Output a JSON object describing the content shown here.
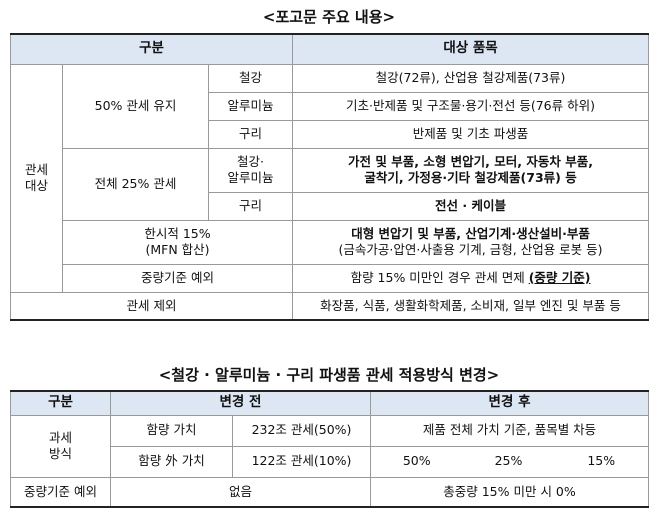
{
  "t1": {
    "title": "<포고문 주요 내용>",
    "h_cat": "구분",
    "h_items": "대상 품목",
    "group_label": "관세\n대상",
    "maintain": "50% 관세 유지",
    "steel": "철강",
    "steel_items": "철강(72류), 산업용 철강제품(73류)",
    "alum": "알루미늄",
    "alum_items": "기초·반제품 및 구조물·용기·전선 등(76류 하위)",
    "copper": "구리",
    "copper_items": "반제품 및 기초 파생품",
    "full25": "전체 25% 관세",
    "steel_alum": "철강·\n알루미늄",
    "sa_items_1": "가전 및 부품, 소형 변압기, 모터, 자동차 부품,",
    "sa_items_2": "굴착기, 가정용·기타 철강제품(73류) 등",
    "copper2": "구리",
    "copper2_items": "전선 · 케이블",
    "temp": "한시적 15%\n(MFN 합산)",
    "temp_items_1": "대형 변압기 및 부품, 산업기계·생산설비·부품",
    "temp_items_2": "(금속가공·압연·사출용 기계, 금형, 산업용 로봇 등)",
    "weight_exc": "중량기준 예외",
    "weight_items_pre": "함량 15% 미만인 경우 관세 면제 ",
    "weight_items_u": "(중량 기준)",
    "excluded": "관세 제외",
    "excluded_items": "화장품, 식품, 생활화학제품, 소비재, 일부 엔진 및 부품 등"
  },
  "t2": {
    "title": "<철강 · 알루미늄 · 구리 파생품 관세 적용방식 변경>",
    "h_cat": "구분",
    "h_before": "변경 전",
    "h_after": "변경 후",
    "method": "과세\n방식",
    "content_value": "함량 가치",
    "content_before": "232조 관세(50%)",
    "content_after": "제품 전체 가치 기준, 품목별 차등",
    "other_value": "함량 外 가치",
    "other_before": "122조 관세(10%)",
    "after_50": "50%",
    "after_25": "25%",
    "after_15": "15%",
    "weight_exc": "중량기준 예외",
    "weight_before": "없음",
    "weight_after": "총중량 15% 미만 시 0%"
  }
}
